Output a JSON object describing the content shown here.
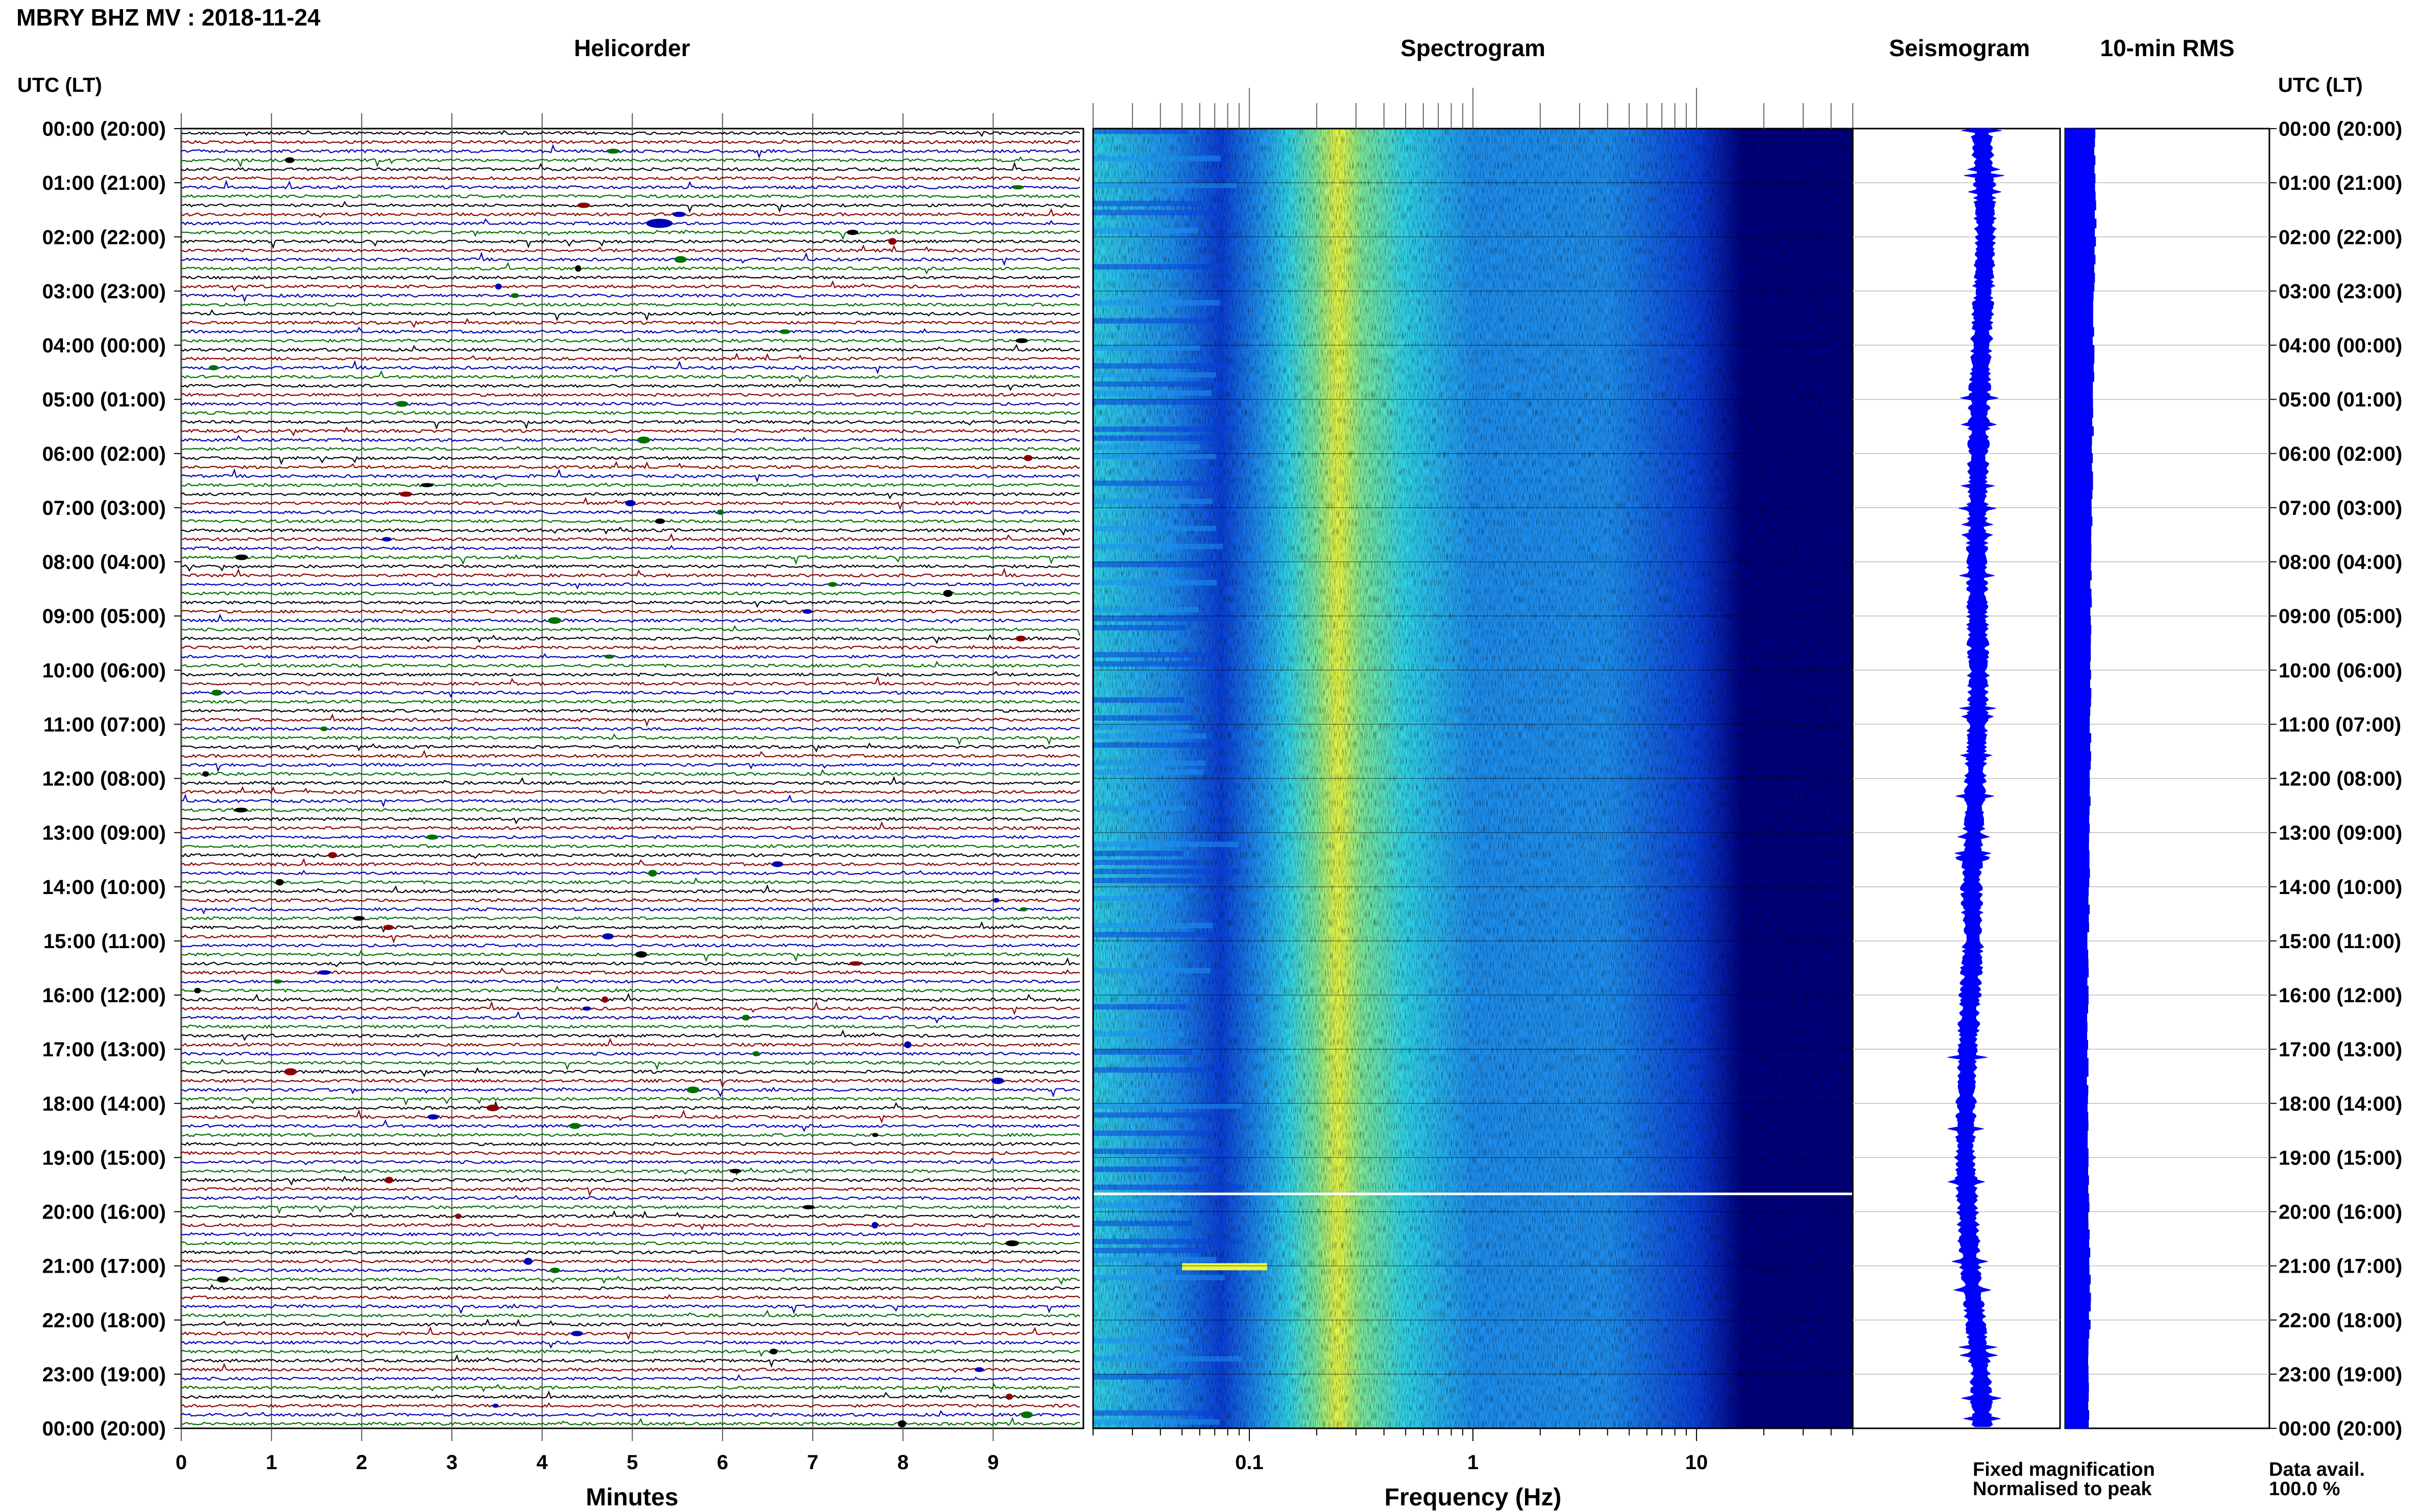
{
  "title": "MBRY BHZ MV : 2018-11-24",
  "chart_data": [
    {
      "type": "line",
      "panel": "helicorder",
      "title": "Helicorder",
      "xlabel": "Minutes",
      "x_ticks": [
        "0",
        "1",
        "2",
        "3",
        "4",
        "5",
        "6",
        "7",
        "8",
        "9"
      ],
      "xlim": [
        0,
        10
      ],
      "row_interval_minutes": 10,
      "rows_per_day": 144,
      "trace_colors": [
        "#000000",
        "#8b0000",
        "#0000b4",
        "#007000"
      ],
      "ylabel": "UTC (LT)",
      "y_ticks": [
        "00:00 (20:00)",
        "01:00 (21:00)",
        "02:00 (22:00)",
        "03:00 (23:00)",
        "04:00 (00:00)",
        "05:00 (01:00)",
        "06:00 (02:00)",
        "07:00 (03:00)",
        "08:00 (04:00)",
        "09:00 (05:00)",
        "10:00 (06:00)",
        "11:00 (07:00)",
        "12:00 (08:00)",
        "13:00 (09:00)",
        "14:00 (10:00)",
        "15:00 (11:00)",
        "16:00 (12:00)",
        "17:00 (13:00)",
        "18:00 (14:00)",
        "19:00 (15:00)",
        "20:00 (16:00)",
        "21:00 (17:00)",
        "22:00 (18:00)",
        "23:00 (19:00)",
        "00:00 (20:00)"
      ]
    },
    {
      "type": "heatmap",
      "panel": "spectrogram",
      "title": "Spectrogram",
      "xlabel": "Frequency (Hz)",
      "x_scale": "log",
      "xlim": [
        0.02,
        50
      ],
      "x_tick_labels": [
        "0.1",
        "1",
        "10"
      ],
      "x_ticks": [
        0.1,
        1,
        10
      ],
      "colormap": [
        "#00007f",
        "#0a3fd8",
        "#1e8fef",
        "#2fd3ea",
        "#7ae89a",
        "#eaf542"
      ],
      "peak_band_hz": 0.25,
      "data_gap_utc": "19:40"
    },
    {
      "type": "line",
      "panel": "seismogram",
      "title": "Seismogram",
      "color": "#0000ff",
      "offset_by_hour": [
        0.15,
        0.25,
        0.28,
        0.22,
        0.15,
        0.08,
        0.05,
        0.02,
        0.0,
        0.02,
        0.05,
        0.02,
        -0.05,
        -0.1,
        -0.18,
        -0.12,
        -0.22,
        -0.3,
        -0.35,
        -0.38,
        -0.3,
        -0.22,
        -0.05,
        0.12,
        0.18
      ]
    },
    {
      "type": "bar",
      "panel": "10-min RMS",
      "title": "10-min RMS",
      "color": "#0000ff",
      "rms_by_hour": [
        0.62,
        0.64,
        0.64,
        0.6,
        0.6,
        0.59,
        0.58,
        0.56,
        0.55,
        0.54,
        0.54,
        0.53,
        0.53,
        0.52,
        0.51,
        0.48,
        0.48,
        0.47,
        0.48,
        0.49,
        0.5,
        0.53,
        0.52,
        0.48,
        0.52
      ]
    }
  ],
  "right_axis_label": "UTC (LT)",
  "legend": {
    "fixed": "Fixed magnification",
    "fixed_color": "#0000ff",
    "normalised": "Normalised to peak",
    "normalised_color": "#ff0000"
  },
  "availability": {
    "label": "Data avail.",
    "value": "100.0 %"
  }
}
